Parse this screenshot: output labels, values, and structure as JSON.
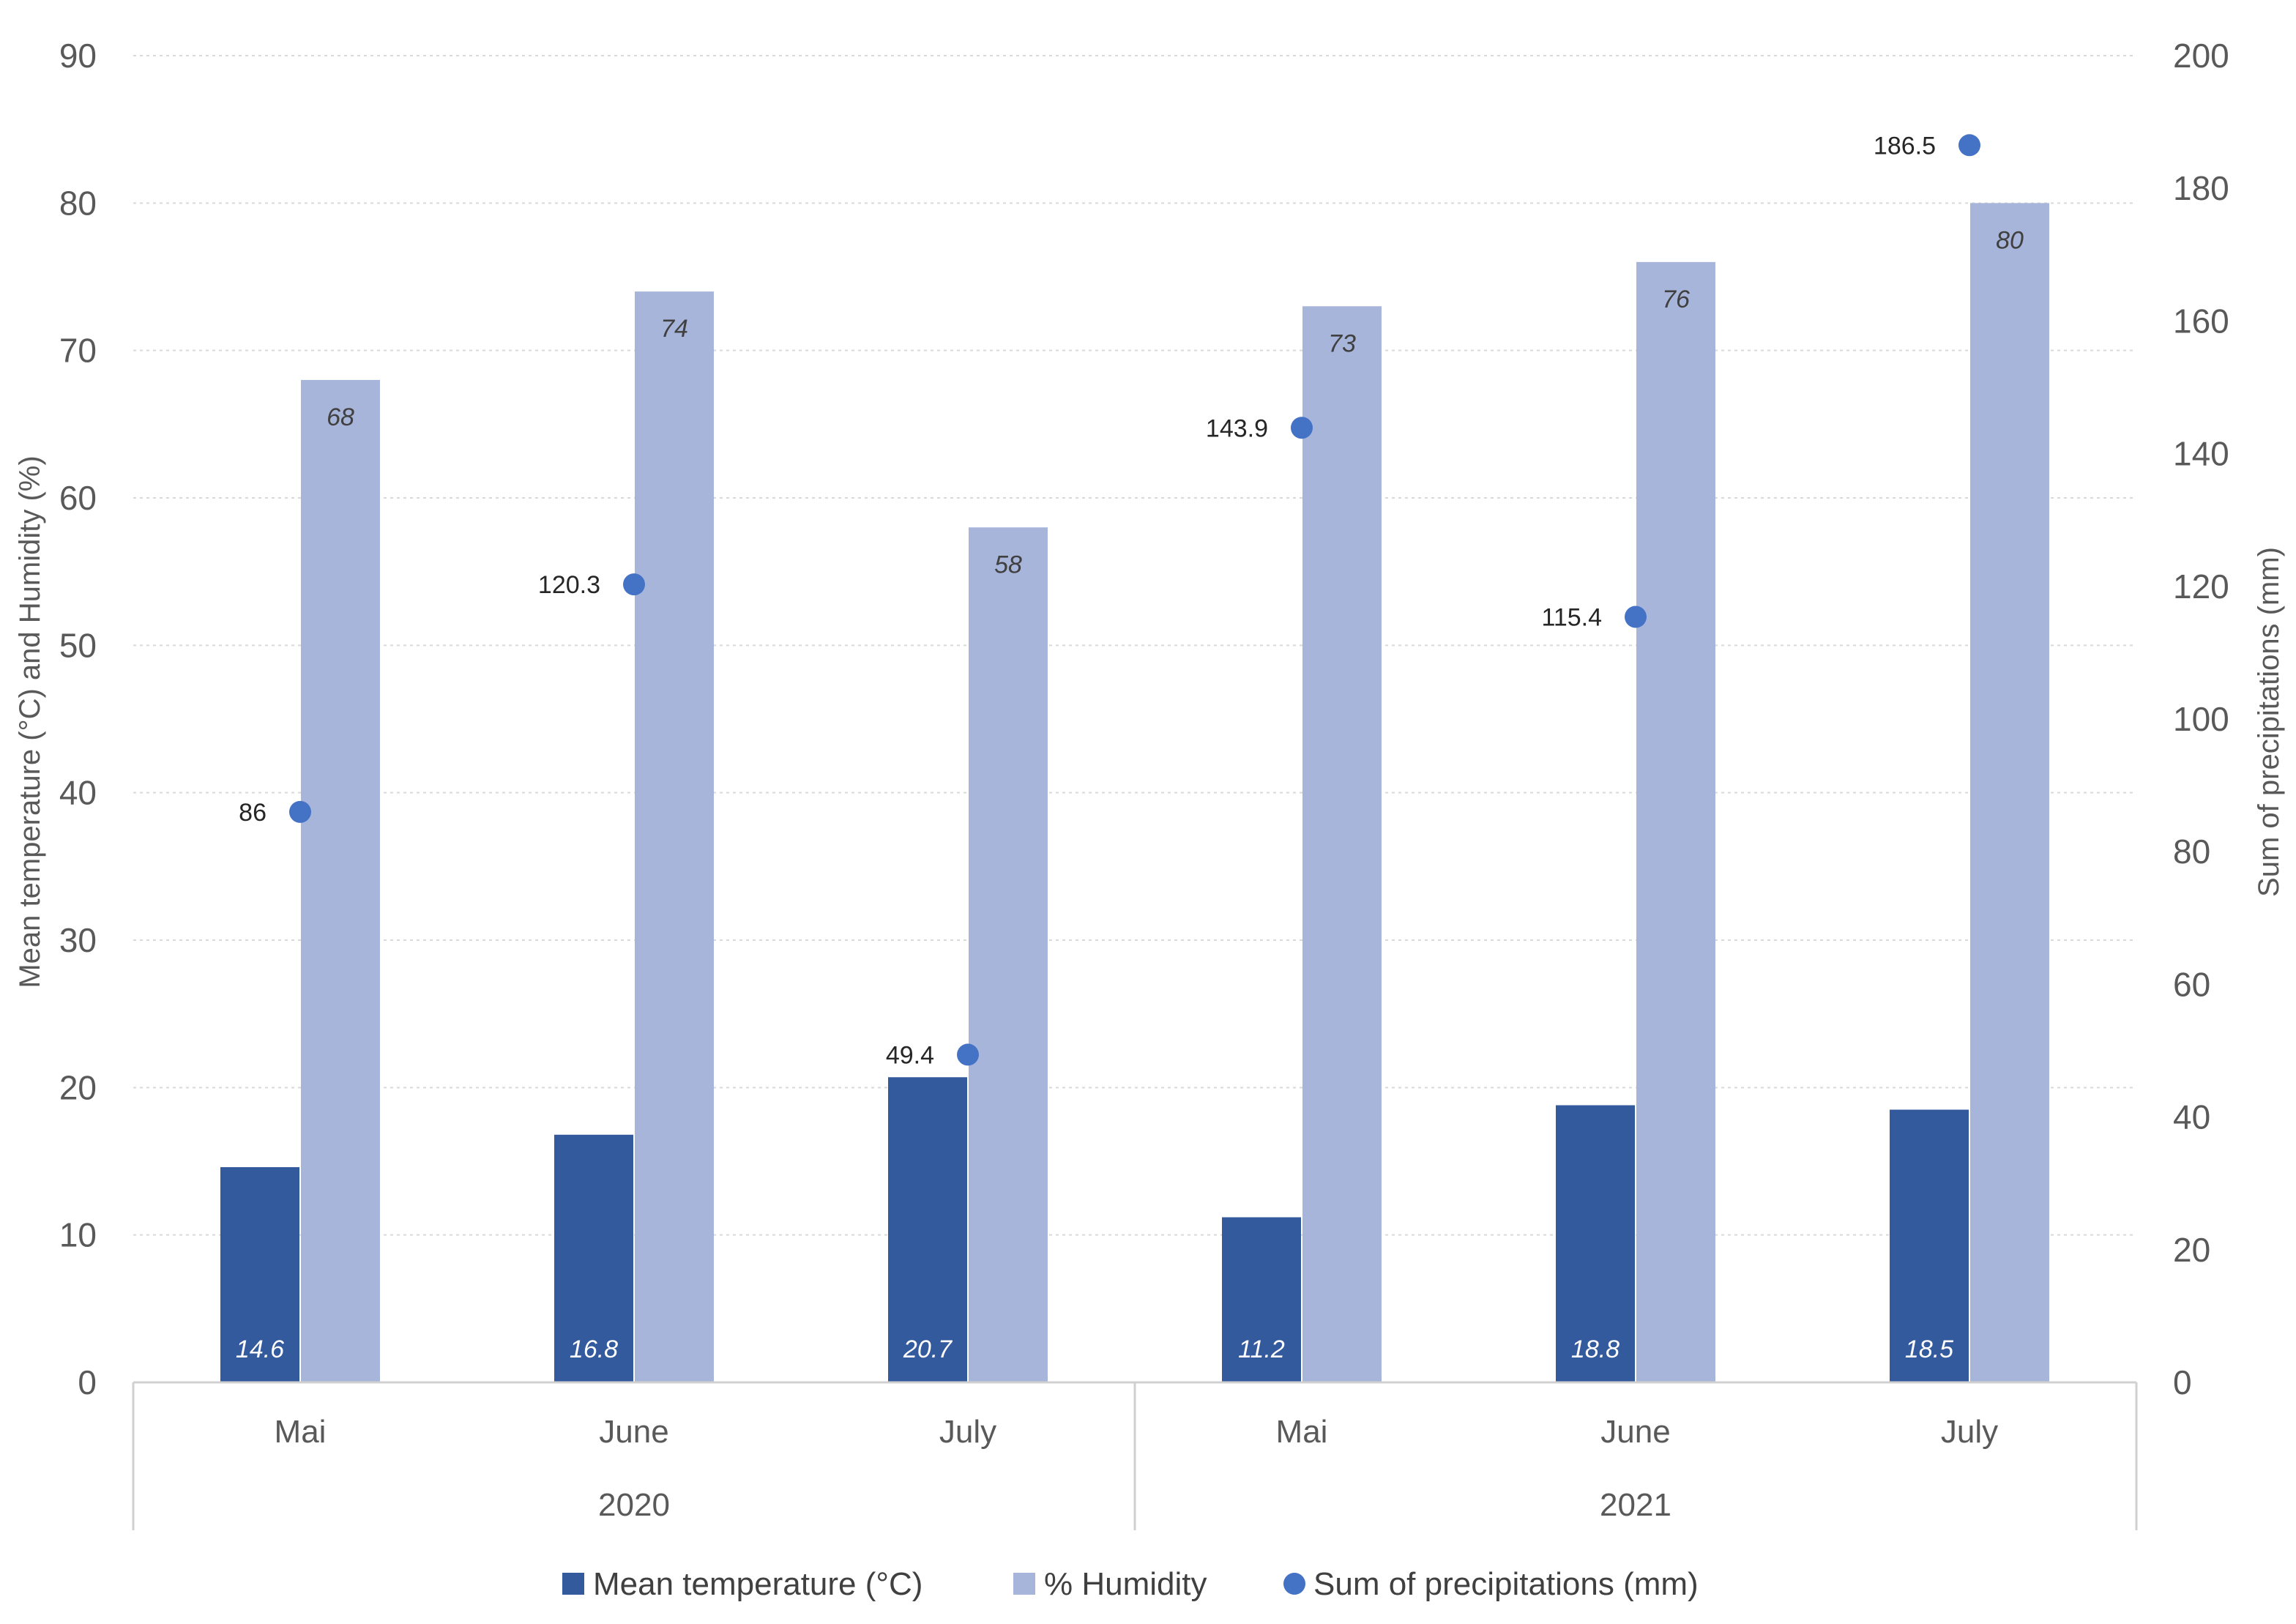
{
  "chart_data": {
    "type": "bar",
    "title": "",
    "groups": [
      {
        "label": "2020",
        "months": [
          "Mai",
          "June",
          "July"
        ]
      },
      {
        "label": "2021",
        "months": [
          "Mai",
          "June",
          "July"
        ]
      }
    ],
    "categories": [
      "Mai",
      "June",
      "July",
      "Mai",
      "June",
      "July"
    ],
    "series": [
      {
        "name": "Mean temperature (°C)",
        "type": "bar",
        "axis": "left",
        "color": "#345A9E",
        "values": [
          14.6,
          16.8,
          20.7,
          11.2,
          18.8,
          18.5
        ],
        "labels": [
          "14.6",
          "16.8",
          "20.7",
          "11.2",
          "18.8",
          "18.5"
        ]
      },
      {
        "name": "% Humidity",
        "type": "bar",
        "axis": "left",
        "color": "#A8B5DB",
        "values": [
          68,
          74,
          58,
          73,
          76,
          80
        ],
        "labels": [
          "68",
          "74",
          "58",
          "73",
          "76",
          "80"
        ]
      },
      {
        "name": "Sum of precipitations (mm)",
        "type": "scatter",
        "axis": "right",
        "color": "#4472C4",
        "values": [
          86,
          120.3,
          49.4,
          143.9,
          115.4,
          186.5
        ],
        "labels": [
          "86",
          "120.3",
          "49.4",
          "143.9",
          "115.4",
          "186.5"
        ]
      }
    ],
    "y_left": {
      "label": "Mean temperature (°C) and Humidity (%)",
      "min": 0,
      "max": 90,
      "step": 10,
      "ticks": [
        "0",
        "10",
        "20",
        "30",
        "40",
        "50",
        "60",
        "70",
        "80",
        "90"
      ]
    },
    "y_right": {
      "label": "Sum of precipitations (mm)",
      "min": 0,
      "max": 200,
      "step": 20,
      "ticks": [
        "0",
        "20",
        "40",
        "60",
        "80",
        "100",
        "120",
        "140",
        "160",
        "180",
        "200"
      ]
    },
    "grid": true,
    "legend_position": "bottom"
  }
}
